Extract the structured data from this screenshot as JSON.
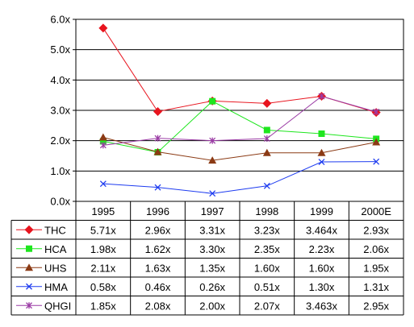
{
  "chart_data": {
    "type": "line",
    "title": "",
    "xlabel": "",
    "ylabel": "",
    "categories": [
      "1995",
      "1996",
      "1997",
      "1998",
      "1999",
      "2000E"
    ],
    "y_ticks": [
      "0.0x",
      "1.0x",
      "2.0x",
      "3.0x",
      "4.0x",
      "5.0x",
      "6.0x"
    ],
    "ylim": [
      0,
      6
    ],
    "grid": "horizontal",
    "legend": "data-table-below",
    "series": [
      {
        "name": "THC",
        "color": "#e8141e",
        "marker": "diamond",
        "values": [
          5.71,
          2.96,
          3.31,
          3.23,
          3.464,
          2.93
        ],
        "labels": [
          "5.71x",
          "2.96x",
          "3.31x",
          "3.23x",
          "3.464x",
          "2.93x"
        ]
      },
      {
        "name": "HCA",
        "color": "#1ee61e",
        "marker": "square",
        "values": [
          1.98,
          1.62,
          3.3,
          2.35,
          2.23,
          2.06
        ],
        "labels": [
          "1.98x",
          "1.62x",
          "3.30x",
          "2.35x",
          "2.23x",
          "2.06x"
        ]
      },
      {
        "name": "UHS",
        "color": "#8b3a14",
        "marker": "triangle",
        "values": [
          2.11,
          1.63,
          1.35,
          1.6,
          1.6,
          1.95
        ],
        "labels": [
          "2.11x",
          "1.63x",
          "1.35x",
          "1.60x",
          "1.60x",
          "1.95x"
        ]
      },
      {
        "name": "HMA",
        "color": "#1e3cf0",
        "marker": "x",
        "values": [
          0.58,
          0.46,
          0.26,
          0.51,
          1.3,
          1.31
        ],
        "labels": [
          "0.58x",
          "0.46x",
          "0.26x",
          "0.51x",
          "1.30x",
          "1.31x"
        ]
      },
      {
        "name": "QHGI",
        "color": "#9b3ca5",
        "marker": "star",
        "values": [
          1.85,
          2.08,
          2.0,
          2.07,
          3.463,
          2.95
        ],
        "labels": [
          "1.85x",
          "2.08x",
          "2.00x",
          "2.07x",
          "3.463x",
          "2.95x"
        ]
      }
    ]
  }
}
